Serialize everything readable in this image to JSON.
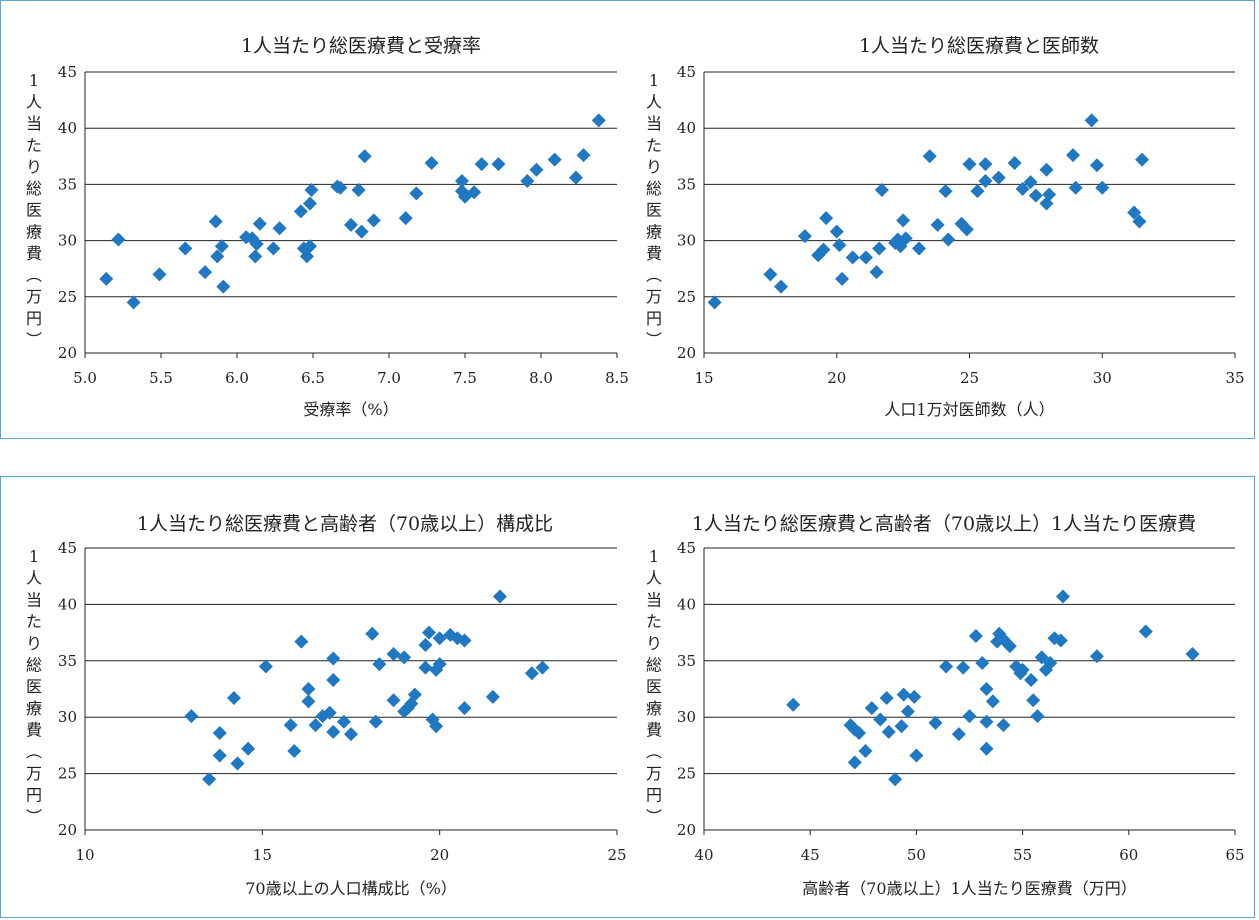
{
  "chart_data": [
    {
      "type": "scatter",
      "title": "1人当たり総医療費と受療率",
      "xlabel": "受療率（%）",
      "ylabel": "1人当たり総医療費（万円）",
      "xlim": [
        5.0,
        8.5
      ],
      "ylim": [
        20,
        45
      ],
      "x_ticks": [
        "5.0",
        "5.5",
        "6.0",
        "6.5",
        "7.0",
        "7.5",
        "8.0",
        "8.5"
      ],
      "y_ticks": [
        "20",
        "25",
        "30",
        "35",
        "40",
        "45"
      ],
      "grid": "horizontal",
      "points": [
        [
          5.14,
          26.6
        ],
        [
          5.22,
          30.1
        ],
        [
          5.32,
          24.5
        ],
        [
          5.49,
          27.0
        ],
        [
          5.66,
          29.3
        ],
        [
          5.79,
          27.2
        ],
        [
          5.86,
          31.7
        ],
        [
          5.87,
          28.6
        ],
        [
          5.9,
          29.5
        ],
        [
          5.91,
          25.9
        ],
        [
          6.06,
          30.3
        ],
        [
          6.1,
          30.2
        ],
        [
          6.12,
          28.6
        ],
        [
          6.13,
          29.7
        ],
        [
          6.15,
          31.5
        ],
        [
          6.24,
          29.3
        ],
        [
          6.28,
          31.1
        ],
        [
          6.42,
          32.6
        ],
        [
          6.44,
          29.3
        ],
        [
          6.46,
          28.6
        ],
        [
          6.48,
          29.5
        ],
        [
          6.48,
          33.3
        ],
        [
          6.49,
          34.5
        ],
        [
          6.66,
          34.8
        ],
        [
          6.68,
          34.7
        ],
        [
          6.75,
          31.4
        ],
        [
          6.8,
          34.5
        ],
        [
          6.82,
          30.8
        ],
        [
          6.84,
          37.5
        ],
        [
          6.9,
          31.8
        ],
        [
          7.11,
          32.0
        ],
        [
          7.18,
          34.2
        ],
        [
          7.28,
          36.9
        ],
        [
          7.48,
          35.3
        ],
        [
          7.48,
          34.4
        ],
        [
          7.5,
          33.9
        ],
        [
          7.56,
          34.3
        ],
        [
          7.61,
          36.8
        ],
        [
          7.72,
          36.8
        ],
        [
          7.91,
          35.3
        ],
        [
          7.97,
          36.3
        ],
        [
          8.09,
          37.2
        ],
        [
          8.23,
          35.6
        ],
        [
          8.28,
          37.6
        ],
        [
          8.38,
          40.7
        ]
      ]
    },
    {
      "type": "scatter",
      "title": "1人当たり総医療費と医師数",
      "xlabel": "人口1万対医師数（人）",
      "ylabel": "1人当たり総医療費（万円）",
      "xlim": [
        15,
        35
      ],
      "ylim": [
        20,
        45
      ],
      "x_ticks": [
        "15",
        "20",
        "25",
        "30",
        "35"
      ],
      "y_ticks": [
        "20",
        "25",
        "30",
        "35",
        "40",
        "45"
      ],
      "grid": "horizontal",
      "points": [
        [
          15.4,
          24.5
        ],
        [
          17.5,
          27.0
        ],
        [
          17.9,
          25.9
        ],
        [
          18.8,
          30.4
        ],
        [
          19.3,
          28.7
        ],
        [
          19.5,
          29.2
        ],
        [
          19.6,
          32.0
        ],
        [
          20.0,
          30.8
        ],
        [
          20.1,
          29.6
        ],
        [
          20.2,
          26.6
        ],
        [
          20.6,
          28.5
        ],
        [
          21.1,
          28.5
        ],
        [
          21.5,
          27.2
        ],
        [
          21.6,
          29.3
        ],
        [
          21.7,
          34.5
        ],
        [
          22.2,
          29.8
        ],
        [
          22.3,
          30.1
        ],
        [
          22.4,
          29.5
        ],
        [
          22.5,
          31.8
        ],
        [
          22.6,
          30.2
        ],
        [
          23.1,
          29.3
        ],
        [
          23.5,
          37.5
        ],
        [
          23.8,
          31.4
        ],
        [
          24.1,
          34.4
        ],
        [
          24.2,
          30.1
        ],
        [
          24.7,
          31.5
        ],
        [
          24.9,
          31.0
        ],
        [
          25.0,
          36.8
        ],
        [
          25.3,
          34.4
        ],
        [
          25.6,
          36.8
        ],
        [
          25.6,
          35.3
        ],
        [
          26.1,
          35.6
        ],
        [
          26.7,
          36.9
        ],
        [
          27.0,
          34.6
        ],
        [
          27.3,
          35.2
        ],
        [
          27.5,
          34.0
        ],
        [
          27.9,
          33.3
        ],
        [
          27.9,
          36.3
        ],
        [
          28.0,
          34.1
        ],
        [
          28.9,
          37.6
        ],
        [
          29.0,
          34.7
        ],
        [
          29.6,
          40.7
        ],
        [
          29.8,
          36.7
        ],
        [
          30.0,
          34.7
        ],
        [
          31.2,
          32.5
        ],
        [
          31.4,
          31.7
        ],
        [
          31.5,
          37.2
        ]
      ]
    },
    {
      "type": "scatter",
      "title": "1人当たり総医療費と高齢者（70歳以上）構成比",
      "xlabel": "70歳以上の人口構成比（%）",
      "ylabel": "1人当たり総医療費（万円）",
      "xlim": [
        10,
        25
      ],
      "ylim": [
        20,
        45
      ],
      "x_ticks": [
        "10",
        "15",
        "20",
        "25"
      ],
      "y_ticks": [
        "20",
        "25",
        "30",
        "35",
        "40",
        "45"
      ],
      "grid": "horizontal",
      "points": [
        [
          13.0,
          30.1
        ],
        [
          13.5,
          24.5
        ],
        [
          13.8,
          26.6
        ],
        [
          13.8,
          28.6
        ],
        [
          14.2,
          31.7
        ],
        [
          14.3,
          25.9
        ],
        [
          14.6,
          27.2
        ],
        [
          15.1,
          34.5
        ],
        [
          15.8,
          29.3
        ],
        [
          15.9,
          27.0
        ],
        [
          16.1,
          36.7
        ],
        [
          16.3,
          31.4
        ],
        [
          16.3,
          32.5
        ],
        [
          16.5,
          29.3
        ],
        [
          16.7,
          30.1
        ],
        [
          16.9,
          30.4
        ],
        [
          17.0,
          28.7
        ],
        [
          17.0,
          35.2
        ],
        [
          17.0,
          33.3
        ],
        [
          17.3,
          29.6
        ],
        [
          17.5,
          28.5
        ],
        [
          18.1,
          37.4
        ],
        [
          18.2,
          29.6
        ],
        [
          18.3,
          34.7
        ],
        [
          18.7,
          35.6
        ],
        [
          18.7,
          31.5
        ],
        [
          19.0,
          30.5
        ],
        [
          19.0,
          35.3
        ],
        [
          19.1,
          30.8
        ],
        [
          19.2,
          31.2
        ],
        [
          19.3,
          32.0
        ],
        [
          19.6,
          36.4
        ],
        [
          19.6,
          34.4
        ],
        [
          19.7,
          37.5
        ],
        [
          19.8,
          29.8
        ],
        [
          19.9,
          34.2
        ],
        [
          19.9,
          29.2
        ],
        [
          20.0,
          34.7
        ],
        [
          20.0,
          37.0
        ],
        [
          20.3,
          37.3
        ],
        [
          20.5,
          37.0
        ],
        [
          20.7,
          36.8
        ],
        [
          20.7,
          30.8
        ],
        [
          21.5,
          31.8
        ],
        [
          21.7,
          40.7
        ],
        [
          22.6,
          33.9
        ],
        [
          22.9,
          34.4
        ]
      ]
    },
    {
      "type": "scatter",
      "title": "1人当たり総医療費と高齢者（70歳以上）1人当たり医療費",
      "xlabel": "高齢者（70歳以上）1人当たり医療費（万円）",
      "ylabel": "1人当たり総医療費（万円）",
      "xlim": [
        40,
        65
      ],
      "ylim": [
        20,
        45
      ],
      "x_ticks": [
        "40",
        "45",
        "50",
        "55",
        "60",
        "65"
      ],
      "y_ticks": [
        "20",
        "25",
        "30",
        "35",
        "40",
        "45"
      ],
      "grid": "horizontal",
      "points": [
        [
          44.2,
          31.1
        ],
        [
          46.9,
          29.3
        ],
        [
          47.1,
          28.9
        ],
        [
          47.1,
          26.0
        ],
        [
          47.3,
          28.6
        ],
        [
          47.6,
          27.0
        ],
        [
          47.9,
          30.8
        ],
        [
          48.3,
          29.8
        ],
        [
          48.6,
          31.7
        ],
        [
          48.7,
          28.7
        ],
        [
          49.0,
          24.5
        ],
        [
          49.3,
          29.2
        ],
        [
          49.4,
          32.0
        ],
        [
          49.6,
          30.5
        ],
        [
          49.9,
          31.8
        ],
        [
          50.0,
          26.6
        ],
        [
          50.9,
          29.5
        ],
        [
          51.4,
          34.5
        ],
        [
          52.0,
          28.5
        ],
        [
          52.2,
          34.4
        ],
        [
          52.5,
          30.1
        ],
        [
          52.8,
          37.2
        ],
        [
          53.1,
          34.8
        ],
        [
          53.3,
          32.5
        ],
        [
          53.3,
          29.6
        ],
        [
          53.3,
          27.2
        ],
        [
          53.6,
          31.4
        ],
        [
          53.8,
          36.7
        ],
        [
          53.9,
          37.4
        ],
        [
          54.1,
          29.3
        ],
        [
          54.1,
          36.9
        ],
        [
          54.4,
          36.3
        ],
        [
          54.7,
          34.5
        ],
        [
          54.9,
          33.9
        ],
        [
          55.0,
          34.2
        ],
        [
          55.4,
          33.3
        ],
        [
          55.5,
          31.5
        ],
        [
          55.7,
          30.1
        ],
        [
          55.9,
          35.3
        ],
        [
          56.1,
          34.2
        ],
        [
          56.3,
          34.8
        ],
        [
          56.5,
          37.0
        ],
        [
          56.8,
          36.8
        ],
        [
          56.9,
          40.7
        ],
        [
          58.5,
          35.4
        ],
        [
          60.8,
          37.6
        ],
        [
          63.0,
          35.6
        ]
      ]
    }
  ]
}
